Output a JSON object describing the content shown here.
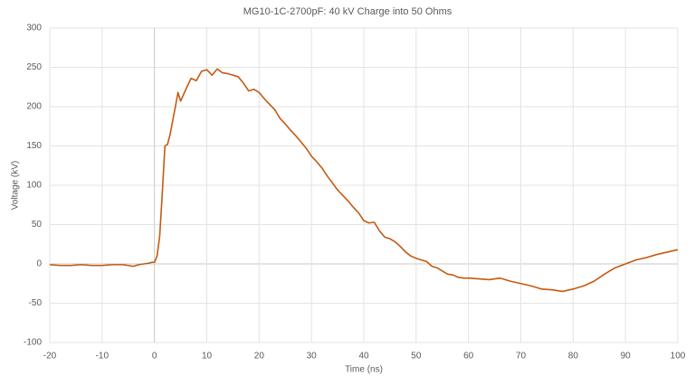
{
  "chart_data": {
    "type": "line",
    "title": "MG10-1C-2700pF: 40 kV Charge into 50 Ohms",
    "x_label": "Time (ns)",
    "y_label": "Voltage (kV)",
    "x": [
      -20,
      -18,
      -16,
      -14,
      -12,
      -10,
      -8,
      -6,
      -4,
      -3,
      -2,
      -1,
      -0.5,
      0,
      0.5,
      1,
      1.5,
      2,
      2.5,
      3,
      4,
      4.5,
      5,
      6,
      7,
      8,
      9,
      10,
      11,
      12,
      13,
      14,
      15,
      16,
      17,
      18,
      19,
      20,
      21,
      22,
      23,
      24,
      25,
      26,
      27,
      28,
      29,
      30,
      31,
      32,
      33,
      34,
      35,
      36,
      37,
      38,
      39,
      40,
      41,
      42,
      43,
      44,
      45,
      46,
      47,
      48,
      49,
      50,
      51,
      52,
      53,
      54,
      55,
      56,
      57,
      58,
      59,
      60,
      62,
      64,
      66,
      68,
      70,
      72,
      74,
      76,
      78,
      80,
      82,
      84,
      86,
      88,
      90,
      92,
      94,
      96,
      98,
      100
    ],
    "series": [
      {
        "name": "Voltage",
        "color": "#c55a11",
        "values": [
          -1,
          -2,
          -2,
          -1,
          -2,
          -2,
          -1,
          -1,
          -3,
          -1,
          0,
          1,
          2,
          2,
          10,
          35,
          90,
          150,
          152,
          165,
          200,
          218,
          207,
          222,
          236,
          233,
          245,
          247,
          240,
          248,
          243,
          242,
          240,
          238,
          230,
          220,
          222,
          218,
          210,
          203,
          196,
          185,
          178,
          170,
          163,
          155,
          147,
          137,
          130,
          122,
          112,
          103,
          94,
          87,
          80,
          72,
          65,
          55,
          52,
          53,
          42,
          34,
          32,
          28,
          22,
          15,
          10,
          7,
          5,
          3,
          -3,
          -5,
          -9,
          -13,
          -14,
          -17,
          -18,
          -18,
          -19,
          -20,
          -18,
          -22,
          -25,
          -28,
          -32,
          -33,
          -35,
          -32,
          -28,
          -22,
          -13,
          -5,
          0,
          5,
          8,
          12,
          15,
          18
        ]
      }
    ],
    "xlim": [
      -20,
      100
    ],
    "xticks": [
      -20,
      -10,
      0,
      10,
      20,
      30,
      40,
      50,
      60,
      70,
      80,
      90,
      100
    ],
    "ylim": [
      -100,
      300
    ],
    "yticks": [
      -100,
      -50,
      0,
      50,
      100,
      150,
      200,
      250,
      300
    ],
    "grid": true
  }
}
